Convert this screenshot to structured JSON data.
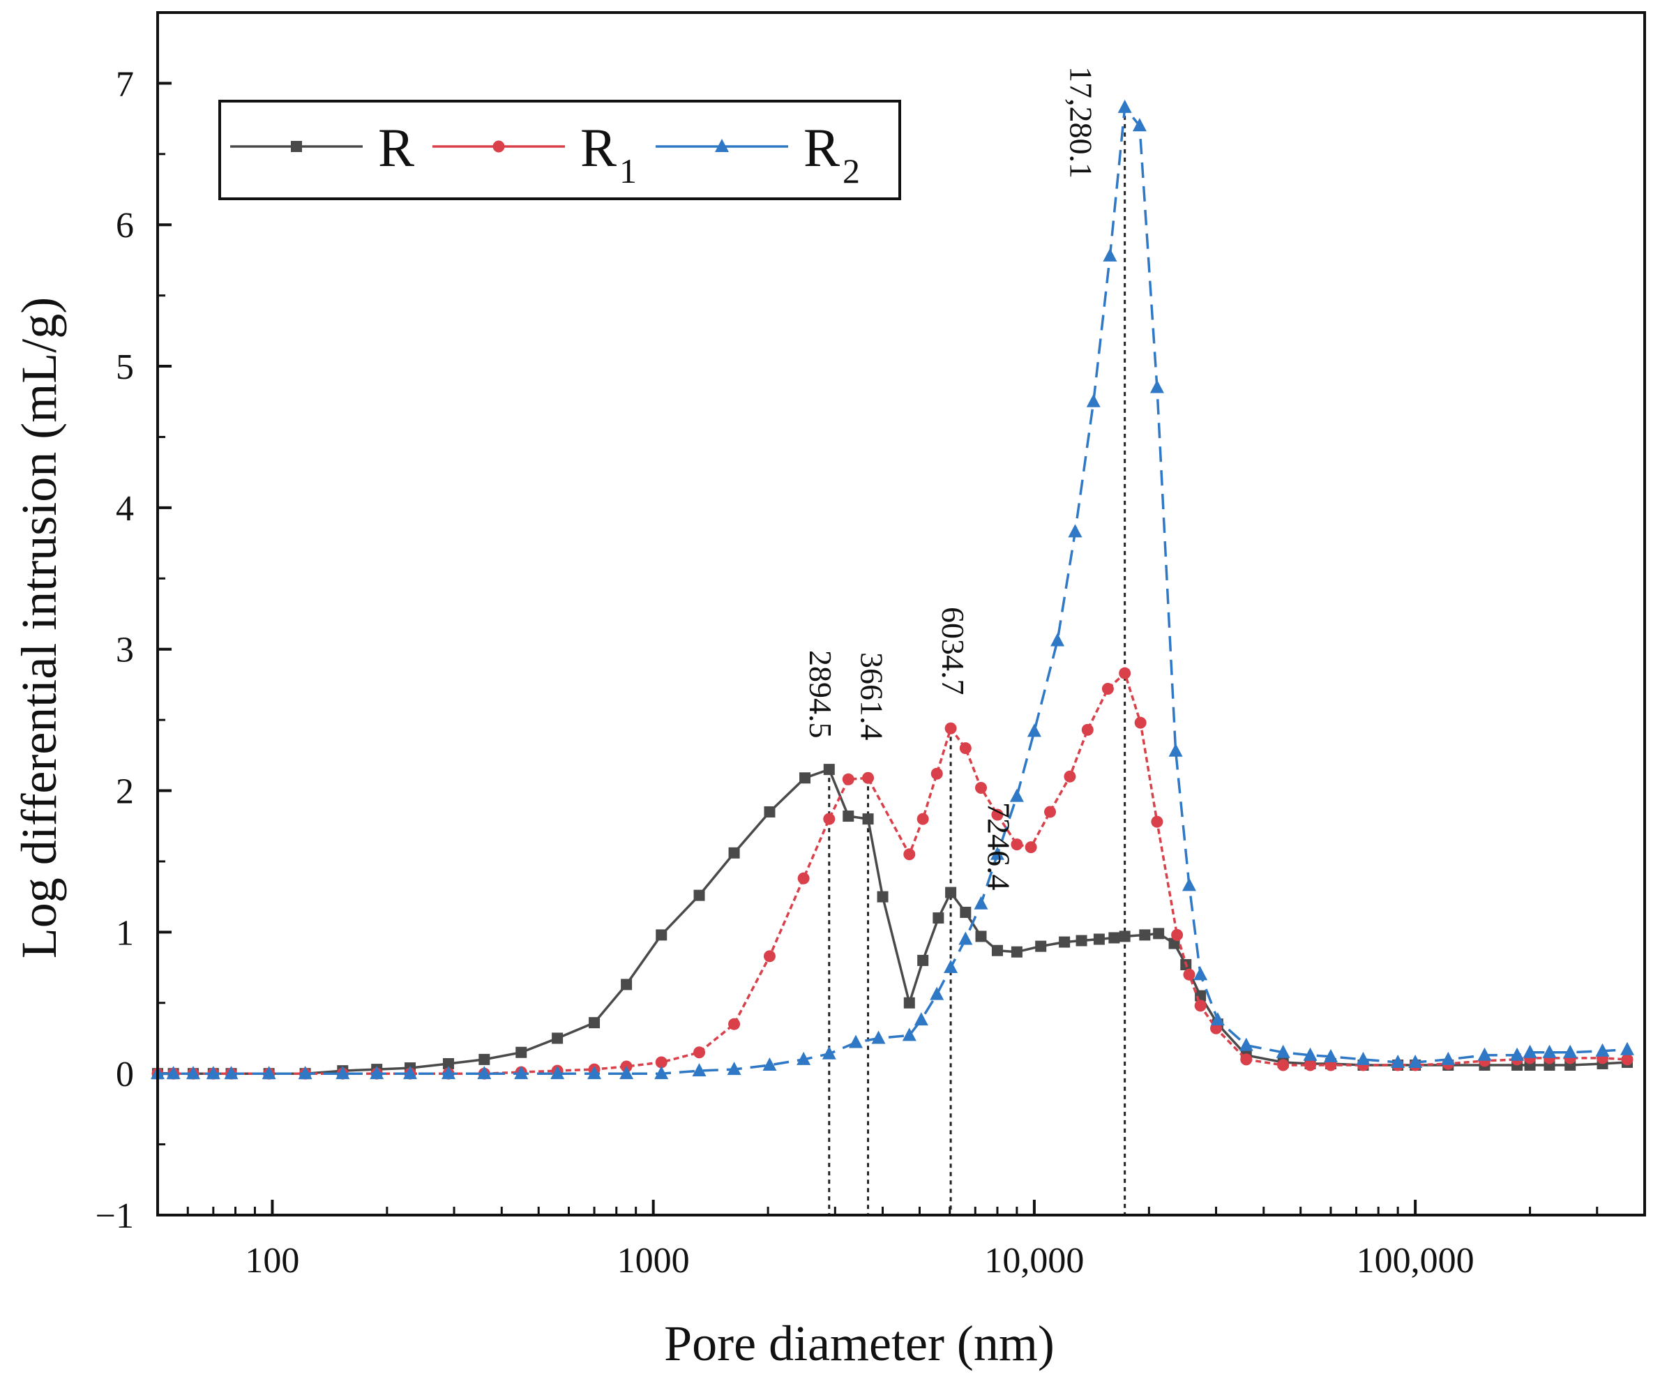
{
  "chart_data": {
    "type": "line",
    "xscale": "log",
    "xlabel": "Pore diameter (nm)",
    "ylabel": "Log differential intrusion (mL/g)",
    "xlim": [
      50,
      400000
    ],
    "ylim": [
      -1,
      7.5
    ],
    "xticks": [
      {
        "value": 100,
        "label": "100"
      },
      {
        "value": 1000,
        "label": "1000"
      },
      {
        "value": 10000,
        "label": "10,000"
      },
      {
        "value": 100000,
        "label": "100,000"
      }
    ],
    "yticks": [
      {
        "value": -1,
        "label": "−1"
      },
      {
        "value": 0,
        "label": "0"
      },
      {
        "value": 1,
        "label": "1"
      },
      {
        "value": 2,
        "label": "2"
      },
      {
        "value": 3,
        "label": "3"
      },
      {
        "value": 4,
        "label": "4"
      },
      {
        "value": 5,
        "label": "5"
      },
      {
        "value": 6,
        "label": "6"
      },
      {
        "value": 7,
        "label": "7"
      }
    ],
    "series": [
      {
        "name": "R",
        "sub": "",
        "color": "#4a4a4a",
        "marker": "square",
        "dash": "none",
        "points": [
          [
            50,
            0
          ],
          [
            55,
            0
          ],
          [
            62,
            0
          ],
          [
            70,
            0
          ],
          [
            78,
            0
          ],
          [
            98,
            0
          ],
          [
            122,
            0
          ],
          [
            153,
            0.02
          ],
          [
            188,
            0.03
          ],
          [
            230,
            0.04
          ],
          [
            290,
            0.07
          ],
          [
            360,
            0.1
          ],
          [
            450,
            0.15
          ],
          [
            560,
            0.25
          ],
          [
            700,
            0.36
          ],
          [
            850,
            0.63
          ],
          [
            1050,
            0.98
          ],
          [
            1320,
            1.26
          ],
          [
            1630,
            1.56
          ],
          [
            2020,
            1.85
          ],
          [
            2500,
            2.09
          ],
          [
            2894.5,
            2.15
          ],
          [
            3250,
            1.82
          ],
          [
            3661.4,
            1.8
          ],
          [
            4000,
            1.25
          ],
          [
            4700,
            0.5
          ],
          [
            5100,
            0.8
          ],
          [
            5600,
            1.1
          ],
          [
            6034.7,
            1.28
          ],
          [
            6600,
            1.14
          ],
          [
            7246.4,
            0.97
          ],
          [
            8000,
            0.87
          ],
          [
            9000,
            0.86
          ],
          [
            10400,
            0.9
          ],
          [
            12000,
            0.93
          ],
          [
            13300,
            0.94
          ],
          [
            14800,
            0.95
          ],
          [
            16200,
            0.96
          ],
          [
            17280.1,
            0.97
          ],
          [
            19500,
            0.98
          ],
          [
            21200,
            0.99
          ],
          [
            23300,
            0.92
          ],
          [
            25000,
            0.77
          ],
          [
            27300,
            0.55
          ],
          [
            30300,
            0.35
          ],
          [
            36000,
            0.13
          ],
          [
            45000,
            0.08
          ],
          [
            53000,
            0.07
          ],
          [
            60000,
            0.07
          ],
          [
            73000,
            0.06
          ],
          [
            90000,
            0.06
          ],
          [
            100000,
            0.06
          ],
          [
            122000,
            0.06
          ],
          [
            152000,
            0.06
          ],
          [
            185000,
            0.06
          ],
          [
            200000,
            0.06
          ],
          [
            225000,
            0.06
          ],
          [
            255000,
            0.06
          ],
          [
            310000,
            0.07
          ],
          [
            360000,
            0.08
          ]
        ]
      },
      {
        "name": "R",
        "sub": "1",
        "color": "#d9404a",
        "marker": "circle",
        "dash": "8,5",
        "points": [
          [
            50,
            0
          ],
          [
            55,
            0
          ],
          [
            62,
            0
          ],
          [
            70,
            0
          ],
          [
            78,
            0
          ],
          [
            98,
            0
          ],
          [
            122,
            0
          ],
          [
            153,
            0
          ],
          [
            188,
            0
          ],
          [
            230,
            0
          ],
          [
            290,
            0
          ],
          [
            360,
            0
          ],
          [
            450,
            0.01
          ],
          [
            560,
            0.02
          ],
          [
            700,
            0.03
          ],
          [
            850,
            0.05
          ],
          [
            1050,
            0.08
          ],
          [
            1320,
            0.15
          ],
          [
            1630,
            0.35
          ],
          [
            2020,
            0.83
          ],
          [
            2480,
            1.38
          ],
          [
            2894.5,
            1.8
          ],
          [
            3250,
            2.08
          ],
          [
            3661.4,
            2.09
          ],
          [
            4700,
            1.55
          ],
          [
            5100,
            1.8
          ],
          [
            5550,
            2.12
          ],
          [
            6034.7,
            2.44
          ],
          [
            6600,
            2.3
          ],
          [
            7246.4,
            2.02
          ],
          [
            8000,
            1.83
          ],
          [
            9000,
            1.62
          ],
          [
            9800,
            1.6
          ],
          [
            11000,
            1.85
          ],
          [
            12400,
            2.1
          ],
          [
            13800,
            2.43
          ],
          [
            15600,
            2.72
          ],
          [
            17280.1,
            2.83
          ],
          [
            19000,
            2.48
          ],
          [
            21000,
            1.78
          ],
          [
            23700,
            0.98
          ],
          [
            25500,
            0.7
          ],
          [
            27300,
            0.48
          ],
          [
            30000,
            0.32
          ],
          [
            36000,
            0.1
          ],
          [
            45000,
            0.06
          ],
          [
            53000,
            0.06
          ],
          [
            60000,
            0.06
          ],
          [
            73000,
            0.06
          ],
          [
            90000,
            0.06
          ],
          [
            100000,
            0.06
          ],
          [
            122000,
            0.07
          ],
          [
            152000,
            0.09
          ],
          [
            185000,
            0.1
          ],
          [
            200000,
            0.11
          ],
          [
            225000,
            0.11
          ],
          [
            255000,
            0.11
          ],
          [
            310000,
            0.11
          ],
          [
            360000,
            0.1
          ]
        ]
      },
      {
        "name": "R",
        "sub": "2",
        "color": "#2f78c6",
        "marker": "triangle",
        "dash": "22,12",
        "points": [
          [
            50,
            0
          ],
          [
            55,
            0
          ],
          [
            62,
            0
          ],
          [
            70,
            0
          ],
          [
            78,
            0
          ],
          [
            98,
            0
          ],
          [
            122,
            0
          ],
          [
            153,
            0
          ],
          [
            188,
            0
          ],
          [
            230,
            0
          ],
          [
            290,
            0
          ],
          [
            360,
            0
          ],
          [
            450,
            0
          ],
          [
            560,
            0
          ],
          [
            700,
            0
          ],
          [
            850,
            0
          ],
          [
            1050,
            0
          ],
          [
            1320,
            0.02
          ],
          [
            1630,
            0.03
          ],
          [
            2020,
            0.06
          ],
          [
            2480,
            0.1
          ],
          [
            2894.5,
            0.14
          ],
          [
            3400,
            0.22
          ],
          [
            3900,
            0.25
          ],
          [
            4700,
            0.27
          ],
          [
            5050,
            0.38
          ],
          [
            5550,
            0.56
          ],
          [
            6034.7,
            0.75
          ],
          [
            6600,
            0.95
          ],
          [
            7246.4,
            1.2
          ],
          [
            8000,
            1.55
          ],
          [
            9000,
            1.96
          ],
          [
            10000,
            2.42
          ],
          [
            11500,
            3.06
          ],
          [
            12800,
            3.83
          ],
          [
            14300,
            4.75
          ],
          [
            15800,
            5.78
          ],
          [
            17280.1,
            6.83
          ],
          [
            18900,
            6.7
          ],
          [
            21000,
            4.85
          ],
          [
            23500,
            2.28
          ],
          [
            25500,
            1.33
          ],
          [
            27300,
            0.7
          ],
          [
            30300,
            0.38
          ],
          [
            36000,
            0.2
          ],
          [
            45000,
            0.15
          ],
          [
            53000,
            0.13
          ],
          [
            60000,
            0.12
          ],
          [
            73000,
            0.1
          ],
          [
            90000,
            0.08
          ],
          [
            100000,
            0.08
          ],
          [
            122000,
            0.1
          ],
          [
            152000,
            0.13
          ],
          [
            185000,
            0.13
          ],
          [
            200000,
            0.15
          ],
          [
            225000,
            0.15
          ],
          [
            255000,
            0.15
          ],
          [
            310000,
            0.16
          ],
          [
            360000,
            0.17
          ]
        ]
      }
    ],
    "annotations": [
      {
        "x": 2894.5,
        "y": 2.15,
        "label": "2894.5",
        "dash": "6,6"
      },
      {
        "x": 3661.4,
        "y": 2.09,
        "label": "3661.4",
        "dash": "6,6"
      },
      {
        "x": 6034.7,
        "y": 2.44,
        "label": "6034.7",
        "dash": "6,6"
      },
      {
        "x": 7246.4,
        "y": 2.02,
        "label": "7246.4",
        "dash": "none"
      },
      {
        "x": 17280.1,
        "y": 6.83,
        "label": "17,280.1",
        "dash": "6,6"
      }
    ],
    "legend": {
      "position": "top-left"
    }
  }
}
